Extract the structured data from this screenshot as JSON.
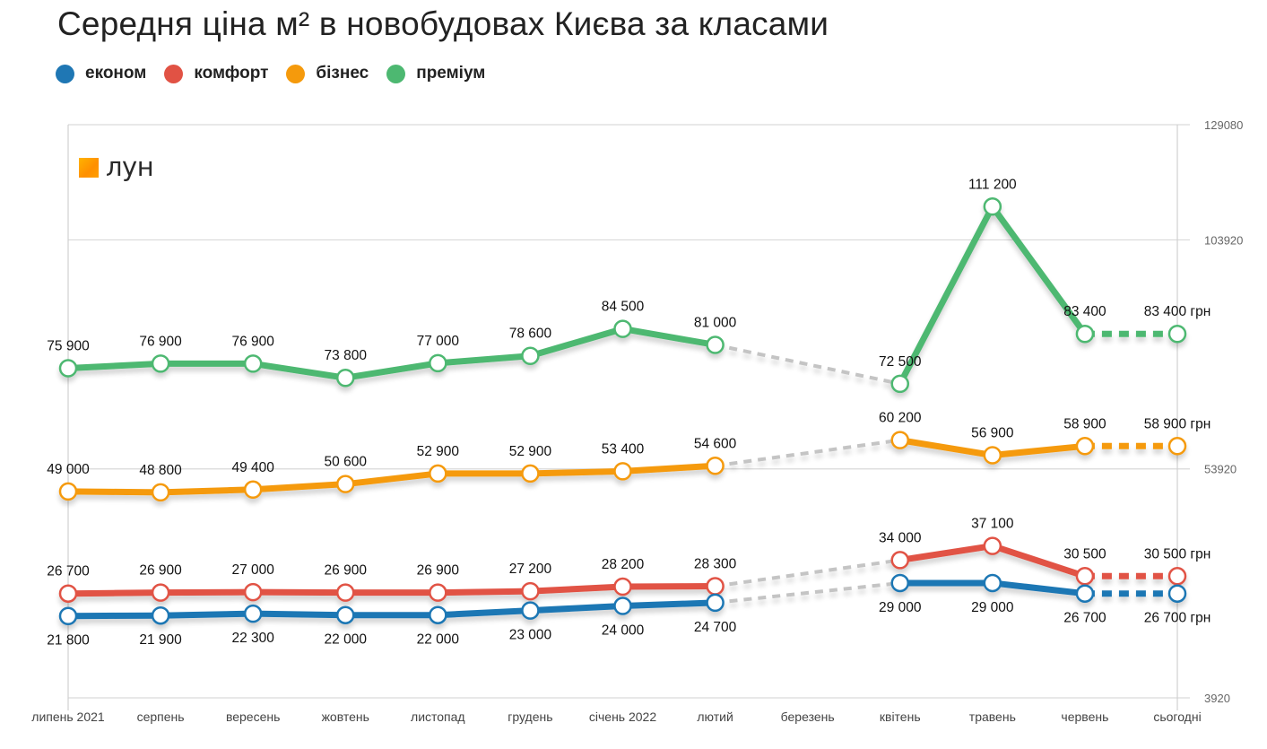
{
  "title": "Середня ціна м² в новобудовах Києва за класами",
  "logo": {
    "text": "лун",
    "color": "#ff9800"
  },
  "legend": [
    {
      "key": "econom",
      "label": "економ",
      "color": "#1f77b4"
    },
    {
      "key": "comfort",
      "label": "комфорт",
      "color": "#e15244"
    },
    {
      "key": "business",
      "label": "бізнес",
      "color": "#f59a0c"
    },
    {
      "key": "premium",
      "label": "преміум",
      "color": "#4db871"
    }
  ],
  "chart_data": {
    "type": "line",
    "title": "Середня ціна м² в новобудовах Києва за класами",
    "xlabel": "",
    "ylabel": "",
    "categories": [
      "липень 2021",
      "серпень",
      "вересень",
      "жовтень",
      "листопад",
      "грудень",
      "січень 2022",
      "лютий",
      "березень",
      "квітень",
      "травень",
      "червень",
      "сьогодні"
    ],
    "y_ticks": [
      3920,
      53920,
      103920,
      129080
    ],
    "ylim": [
      3920,
      129080
    ],
    "y_axis_position": "right",
    "grid": true,
    "legend_position": "top-left",
    "unit_suffix": "грн",
    "gap_category": "березень",
    "gap_style": "grey dashed connector across missing month",
    "last_segment_style": "dashed in series color (червень → сьогодні)",
    "series": [
      {
        "name": "преміум",
        "key": "premium",
        "color": "#4db871",
        "values": [
          75900,
          76900,
          76900,
          73800,
          77000,
          78600,
          84500,
          81000,
          null,
          72500,
          111200,
          83400,
          83400
        ],
        "labels": [
          "75 900",
          "76 900",
          "76 900",
          "73 800",
          "77 000",
          "78 600",
          "84 500",
          "81 000",
          null,
          "72 500",
          "111 200",
          "83 400",
          "83 400 грн"
        ],
        "label_side": [
          "above",
          "above",
          "above",
          "above",
          "above",
          "above",
          "above",
          "above",
          null,
          "above",
          "above",
          "above",
          "above"
        ]
      },
      {
        "name": "бізнес",
        "key": "business",
        "color": "#f59a0c",
        "values": [
          49000,
          48800,
          49400,
          50600,
          52900,
          52900,
          53400,
          54600,
          null,
          60200,
          56900,
          58900,
          58900
        ],
        "labels": [
          "49 000",
          "48 800",
          "49 400",
          "50 600",
          "52 900",
          "52 900",
          "53 400",
          "54 600",
          null,
          "60 200",
          "56 900",
          "58 900",
          "58 900 грн"
        ],
        "label_side": [
          "above",
          "above",
          "above",
          "above",
          "above",
          "above",
          "above",
          "above",
          null,
          "above",
          "above",
          "above",
          "above"
        ]
      },
      {
        "name": "комфорт",
        "key": "comfort",
        "color": "#e15244",
        "values": [
          26700,
          26900,
          27000,
          26900,
          26900,
          27200,
          28200,
          28300,
          null,
          34000,
          37100,
          30500,
          30500
        ],
        "labels": [
          "26 700",
          "26 900",
          "27 000",
          "26 900",
          "26 900",
          "27 200",
          "28 200",
          "28 300",
          null,
          "34 000",
          "37 100",
          "30 500",
          "30 500 грн"
        ],
        "label_side": [
          "above",
          "above",
          "above",
          "above",
          "above",
          "above",
          "above",
          "above",
          null,
          "above",
          "above",
          "above",
          "above"
        ]
      },
      {
        "name": "економ",
        "key": "econom",
        "color": "#1f77b4",
        "values": [
          21800,
          21900,
          22300,
          22000,
          22000,
          23000,
          24000,
          24700,
          null,
          29000,
          29000,
          26700,
          26700
        ],
        "labels": [
          "21 800",
          "21 900",
          "22 300",
          "22 000",
          "22 000",
          "23 000",
          "24 000",
          "24 700",
          null,
          "29 000",
          "29 000",
          "26 700",
          "26 700 грн"
        ],
        "label_side": [
          "below",
          "below",
          "below",
          "below",
          "below",
          "below",
          "below",
          "below",
          null,
          "below",
          "below",
          "below",
          "below"
        ]
      }
    ]
  }
}
